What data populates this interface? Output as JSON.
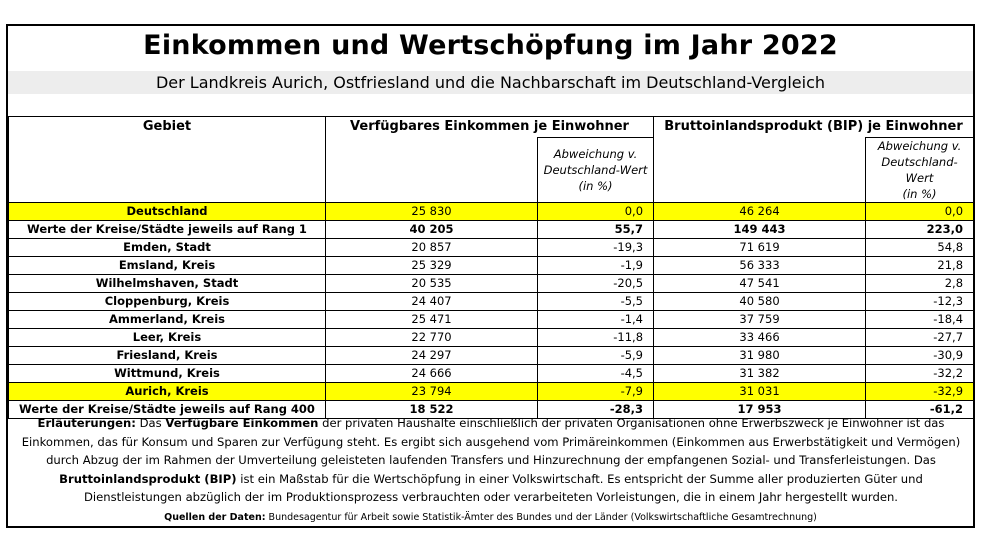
{
  "title": "Einkommen und Wertschöpfung im Jahr 2022",
  "subtitle": "Der Landkreis Aurich, Ostfriesland und die Nachbarschaft im Deutschland-Vergleich",
  "headers": {
    "gebiet": "Gebiet",
    "einkommen": "Verfügbares Einkommen je Einwohner",
    "bip": "Bruttoinlandsprodukt (BIP) je Einwohner",
    "abweichung_1": "Abweichung v.",
    "abweichung_2": "Deutschland-Wert",
    "abweichung_3": "(in %)"
  },
  "rows": [
    {
      "gebiet": "Deutschland",
      "ek": "25 830",
      "ek_abw": "0,0",
      "bip": "46 264",
      "bip_abw": "0,0"
    },
    {
      "gebiet": "Werte der Kreise/Städte jeweils auf Rang 1",
      "ek": "40 205",
      "ek_abw": "55,7",
      "bip": "149 443",
      "bip_abw": "223,0"
    },
    {
      "gebiet": "Emden, Stadt",
      "ek": "20 857",
      "ek_abw": "-19,3",
      "bip": "71 619",
      "bip_abw": "54,8"
    },
    {
      "gebiet": "Emsland, Kreis",
      "ek": "25 329",
      "ek_abw": "-1,9",
      "bip": "56 333",
      "bip_abw": "21,8"
    },
    {
      "gebiet": "Wilhelmshaven, Stadt",
      "ek": "20 535",
      "ek_abw": "-20,5",
      "bip": "47 541",
      "bip_abw": "2,8"
    },
    {
      "gebiet": "Cloppenburg, Kreis",
      "ek": "24 407",
      "ek_abw": "-5,5",
      "bip": "40 580",
      "bip_abw": "-12,3"
    },
    {
      "gebiet": "Ammerland, Kreis",
      "ek": "25 471",
      "ek_abw": "-1,4",
      "bip": "37 759",
      "bip_abw": "-18,4"
    },
    {
      "gebiet": "Leer, Kreis",
      "ek": "22 770",
      "ek_abw": "-11,8",
      "bip": "33 466",
      "bip_abw": "-27,7"
    },
    {
      "gebiet": "Friesland, Kreis",
      "ek": "24 297",
      "ek_abw": "-5,9",
      "bip": "31 980",
      "bip_abw": "-30,9"
    },
    {
      "gebiet": "Wittmund, Kreis",
      "ek": "24 666",
      "ek_abw": "-4,5",
      "bip": "31 382",
      "bip_abw": "-32,2"
    },
    {
      "gebiet": "Aurich, Kreis",
      "ek": "23 794",
      "ek_abw": "-7,9",
      "bip": "31 031",
      "bip_abw": "-32,9"
    },
    {
      "gebiet": "Werte der Kreise/Städte jeweils auf Rang 400",
      "ek": "18 522",
      "ek_abw": "-28,3",
      "bip": "17 953",
      "bip_abw": "-61,2"
    }
  ],
  "notes": {
    "label": "Erläuterungen:",
    "t1": "Das",
    "term1": "Verfügbare Einkommen",
    "t2": "der privaten Haushalte einschließlich der privaten Organisationen ohne Erwerbszweck je Einwohner ist das Einkommen, das für Konsum und Sparen zur Verfügung steht. Es ergibt sich ausgehend vom Primäreinkommen (Einkommen aus Erwerbstätigkeit und Vermögen) durch Abzug der im Rahmen der Umverteilung geleisteten laufenden Transfers und Hinzurechnung der empfangenen Sozial- und Transferleistungen. Das",
    "term2": "Bruttoinlandsprodukt (BIP)",
    "t3": "ist ein Maßstab für die Wertschöpfung in einer Volkswirtschaft. Es  entspricht der Summe aller produzierten Güter und Dienstleistungen abzüglich der im Produktionsprozess verbrauchten oder verarbeiteten Vorleistungen, die in einem Jahr hergestellt wurden."
  },
  "sources": {
    "label": "Quellen der Daten:",
    "text": "Bundesagentur für Arbeit sowie Statistik-Ämter des Bundes und der Länder (Volkswirtschaftliche Gesamtrechnung)"
  },
  "colors": {
    "highlight": "#ffff00",
    "subtitle_bg": "#ededed"
  }
}
